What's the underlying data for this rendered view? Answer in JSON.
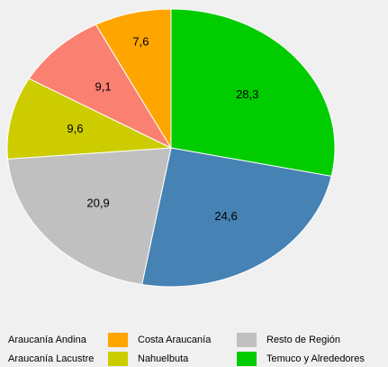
{
  "chart_data": {
    "type": "pie",
    "categories": [
      "Temuco y Alrededores",
      "Araucanía Andina",
      "Resto de Región",
      "Nahuelbuta",
      "Araucanía Lacustre",
      "Costa Araucanía"
    ],
    "values": [
      28.3,
      24.6,
      20.9,
      9.6,
      9.1,
      7.6
    ],
    "value_labels": [
      "28,3",
      "24,6",
      "20,9",
      "9,6",
      "9,1",
      "7,6"
    ],
    "colors": [
      "#00cc00",
      "#4682b4",
      "#c0c0c0",
      "#cccc00",
      "#fa8072",
      "#ffa500"
    ],
    "legend_order": [
      1,
      5,
      2,
      4,
      3,
      0
    ]
  }
}
